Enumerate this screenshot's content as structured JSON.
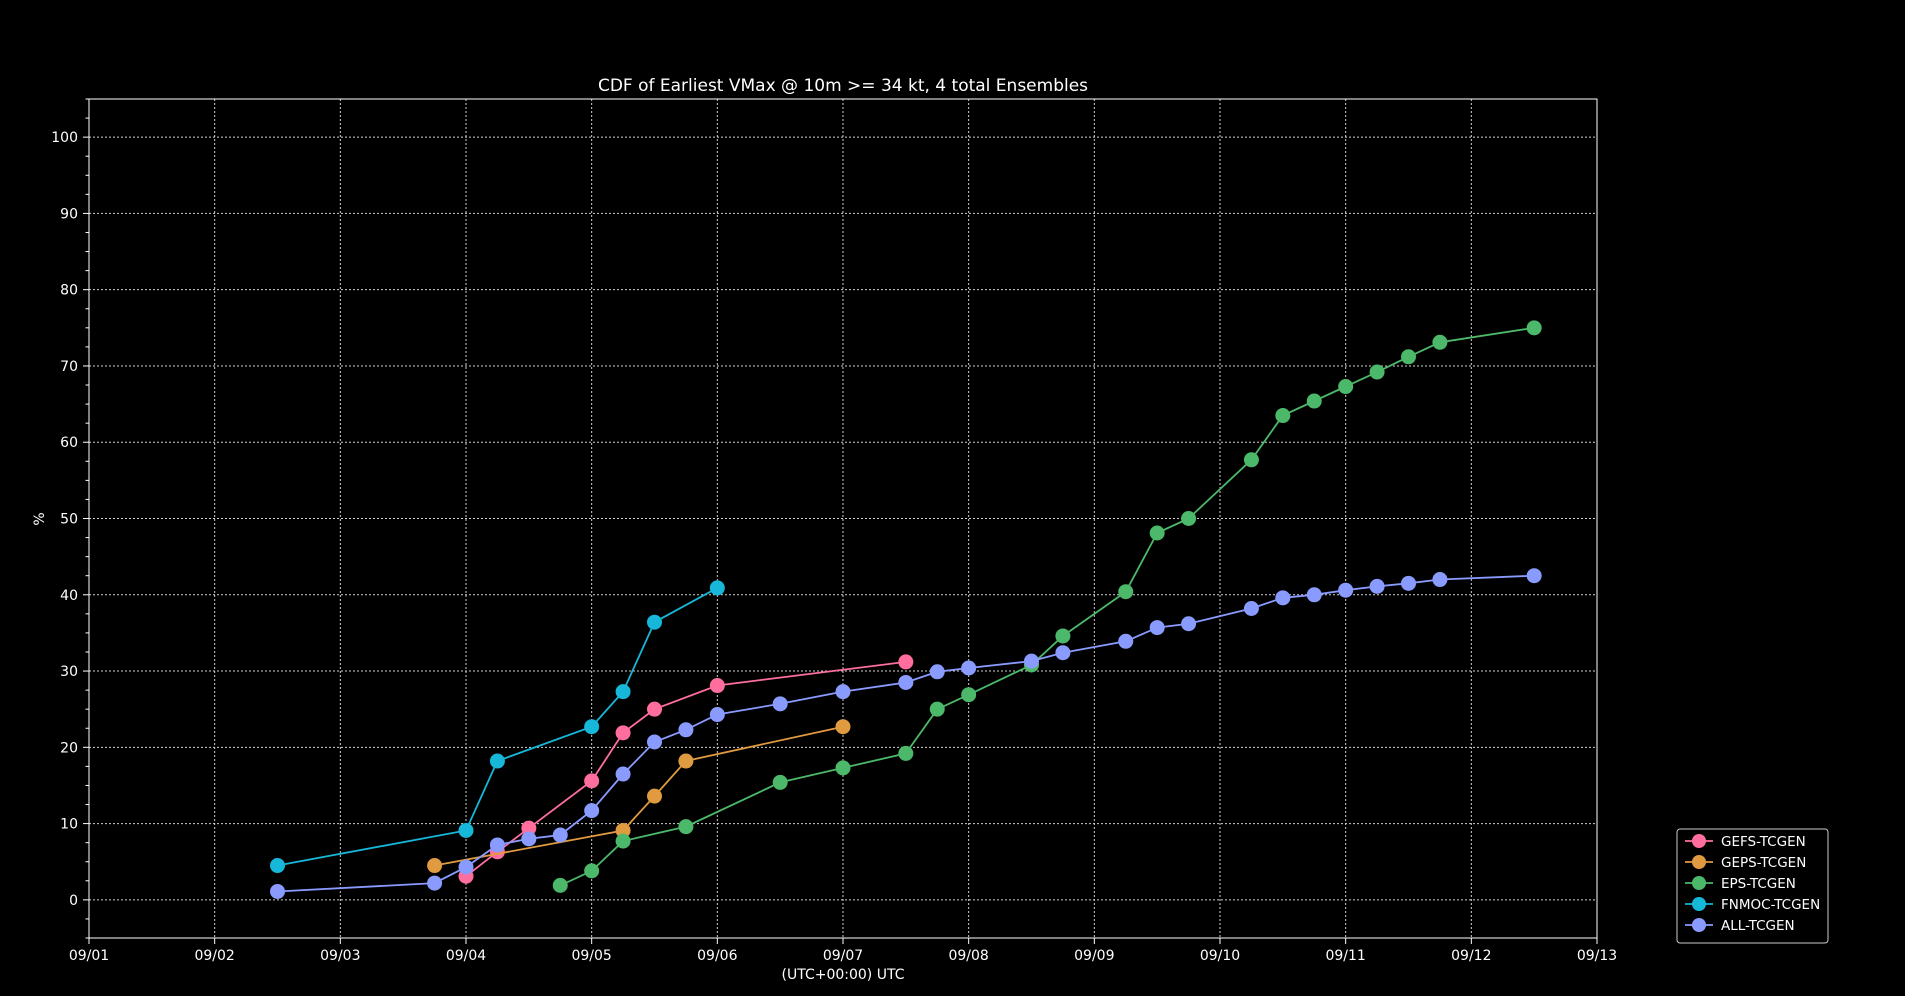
{
  "chart_data": {
    "type": "line",
    "title": "CDF of Earliest VMax @ 10m >= 34 kt, 4 total Ensembles",
    "xlabel": "(UTC+00:00) UTC",
    "ylabel": "%",
    "xlim": [
      0,
      12
    ],
    "ylim": [
      -5,
      105
    ],
    "x_ticks": [
      "09/01",
      "09/02",
      "09/03",
      "09/04",
      "09/05",
      "09/06",
      "09/07",
      "09/08",
      "09/09",
      "09/10",
      "09/11",
      "09/12",
      "09/13"
    ],
    "y_ticks": [
      0,
      10,
      20,
      30,
      40,
      50,
      60,
      70,
      80,
      90,
      100
    ],
    "grid": true,
    "legend_position": "bottom-right",
    "series": [
      {
        "name": "GEFS-TCGEN",
        "color": "#ff6e9c",
        "x": [
          3.0,
          3.25,
          3.5,
          4.0,
          4.25,
          4.5,
          5.0,
          6.5
        ],
        "y": [
          3.1,
          6.3,
          9.4,
          15.6,
          21.9,
          25.0,
          28.1,
          31.2
        ]
      },
      {
        "name": "GEPS-TCGEN",
        "color": "#e09a3f",
        "x": [
          2.75,
          4.25,
          4.5,
          4.75,
          6.0
        ],
        "y": [
          4.5,
          9.1,
          13.6,
          18.2,
          22.7
        ]
      },
      {
        "name": "EPS-TCGEN",
        "color": "#4cb86a",
        "x": [
          3.75,
          4.0,
          4.25,
          4.75,
          5.5,
          6.0,
          6.5,
          6.75,
          7.0,
          7.5,
          7.75,
          8.25,
          8.5,
          8.75,
          9.25,
          9.5,
          9.75,
          10.0,
          10.25,
          10.5,
          10.75,
          11.5
        ],
        "y": [
          1.9,
          3.8,
          7.7,
          9.6,
          15.4,
          17.3,
          19.2,
          25.0,
          26.9,
          30.8,
          34.6,
          40.4,
          48.1,
          50.0,
          57.7,
          63.5,
          65.4,
          67.3,
          69.2,
          71.2,
          73.1,
          75.0
        ]
      },
      {
        "name": "FNMOC-TCGEN",
        "color": "#16b7d9",
        "x": [
          1.5,
          3.0,
          3.25,
          4.0,
          4.25,
          4.5,
          5.0
        ],
        "y": [
          4.5,
          9.1,
          18.2,
          22.7,
          27.3,
          36.4,
          40.9
        ]
      },
      {
        "name": "ALL-TCGEN",
        "color": "#8a9bff",
        "x": [
          1.5,
          2.75,
          3.0,
          3.25,
          3.5,
          3.75,
          4.0,
          4.25,
          4.5,
          4.75,
          5.0,
          5.5,
          6.0,
          6.5,
          6.75,
          7.0,
          7.5,
          7.75,
          8.25,
          8.5,
          8.75,
          9.25,
          9.5,
          9.75,
          10.0,
          10.25,
          10.5,
          10.75,
          11.5
        ],
        "y": [
          1.1,
          2.2,
          4.3,
          7.2,
          8.0,
          8.5,
          11.7,
          16.5,
          20.7,
          22.3,
          24.3,
          25.7,
          27.3,
          28.5,
          29.9,
          30.4,
          31.3,
          32.4,
          33.9,
          35.7,
          36.2,
          38.2,
          39.6,
          40.0,
          40.6,
          41.1,
          41.5,
          42.0,
          42.5
        ]
      }
    ]
  }
}
